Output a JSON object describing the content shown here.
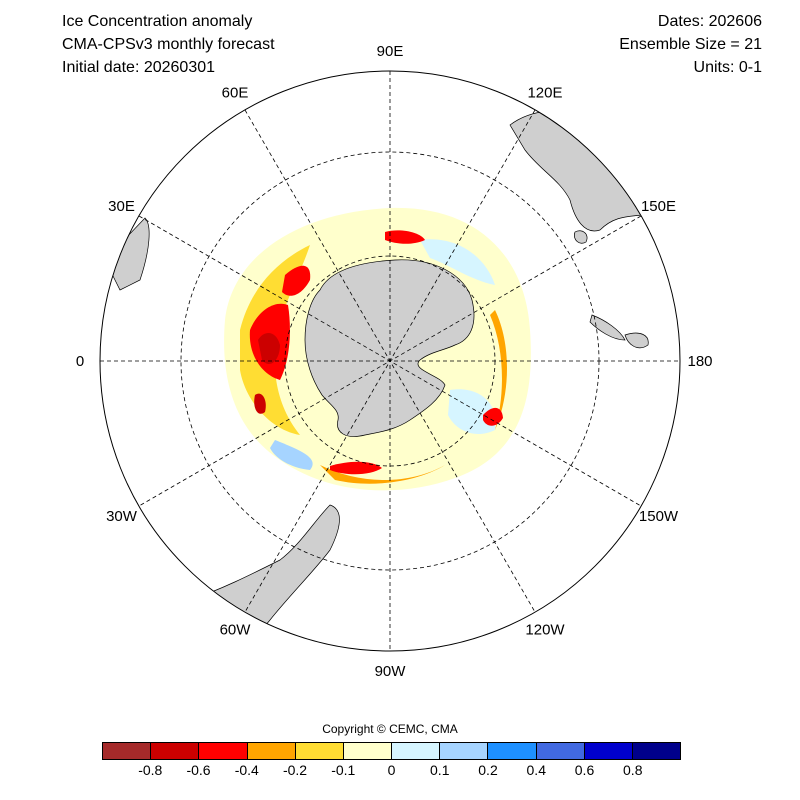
{
  "header": {
    "left": [
      "Ice Concentration anomaly",
      "CMA-CPSv3 monthly forecast",
      "Initial date: 20260301"
    ],
    "right": [
      "Dates: 202606",
      "Ensemble Size = 21",
      "Units: 0-1"
    ]
  },
  "map": {
    "projection": "south-polar stereographic",
    "longitude_labels": [
      {
        "lon": 90,
        "text": "90E"
      },
      {
        "lon": 120,
        "text": "120E"
      },
      {
        "lon": 150,
        "text": "150E"
      },
      {
        "lon": 180,
        "text": "180"
      },
      {
        "lon": -150,
        "text": "150W"
      },
      {
        "lon": -120,
        "text": "120W"
      },
      {
        "lon": -90,
        "text": "90W"
      },
      {
        "lon": -60,
        "text": "60W"
      },
      {
        "lon": -30,
        "text": "30W"
      },
      {
        "lon": 0,
        "text": "0"
      },
      {
        "lon": 30,
        "text": "30E"
      },
      {
        "lon": 60,
        "text": "60E"
      }
    ],
    "land_color": "#cfcfcf",
    "ocean_color": "#ffffff"
  },
  "copyright": "Copyright © CEMC, CMA",
  "colorbar": {
    "colors": [
      "#a52a2a",
      "#cc0000",
      "#ff0000",
      "#ffa500",
      "#ffdd33",
      "#ffffcc",
      "#d6f5ff",
      "#a6d4ff",
      "#1e90ff",
      "#4169e1",
      "#0000cd",
      "#00008b"
    ],
    "tick_labels": [
      "-0.8",
      "-0.6",
      "-0.4",
      "-0.2",
      "-0.1",
      "0",
      "0.1",
      "0.2",
      "0.4",
      "0.6",
      "0.8"
    ]
  }
}
